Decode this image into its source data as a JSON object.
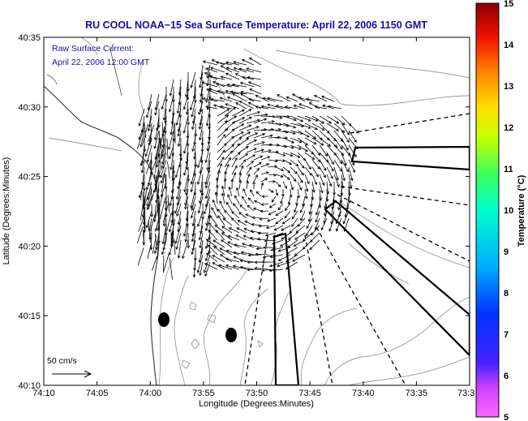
{
  "title": "RU COOL  NOAA−15  Sea Surface Temperature:  April 22, 2006 1150 GMT",
  "current_note": {
    "line1": "Raw Surface Current:",
    "line2": "April 22, 2006 12:00 GMT"
  },
  "x_axis": {
    "label": "Longitude (Degrees:Minutes)",
    "ticks": [
      "74:10",
      "74:05",
      "74:00",
      "73:55",
      "73:50",
      "73:45",
      "73:40",
      "73:35",
      "73:3"
    ]
  },
  "y_axis": {
    "label": "Latitude (Degrees:Minutes)",
    "ticks": [
      "40:35",
      "40:30",
      "40:25",
      "40:20",
      "40:15",
      "40:10"
    ]
  },
  "colorbar": {
    "label": "Temperature (°C)",
    "min": 5,
    "max": 15,
    "ticks": [
      "15",
      "14",
      "13",
      "12",
      "11",
      "10",
      "9",
      "8",
      "7",
      "6",
      "5"
    ],
    "colors": [
      "#ff66ff",
      "#3344ff",
      "#00c0ff",
      "#00ffff",
      "#66ff66",
      "#ffff00",
      "#ffbb00",
      "#ff6600",
      "#ee0000",
      "#8b0000"
    ]
  },
  "scale_label": "50 cm/s",
  "colors": {
    "title": "#1010a8",
    "contours": "#9a9a9a",
    "vectors": "#000000"
  }
}
